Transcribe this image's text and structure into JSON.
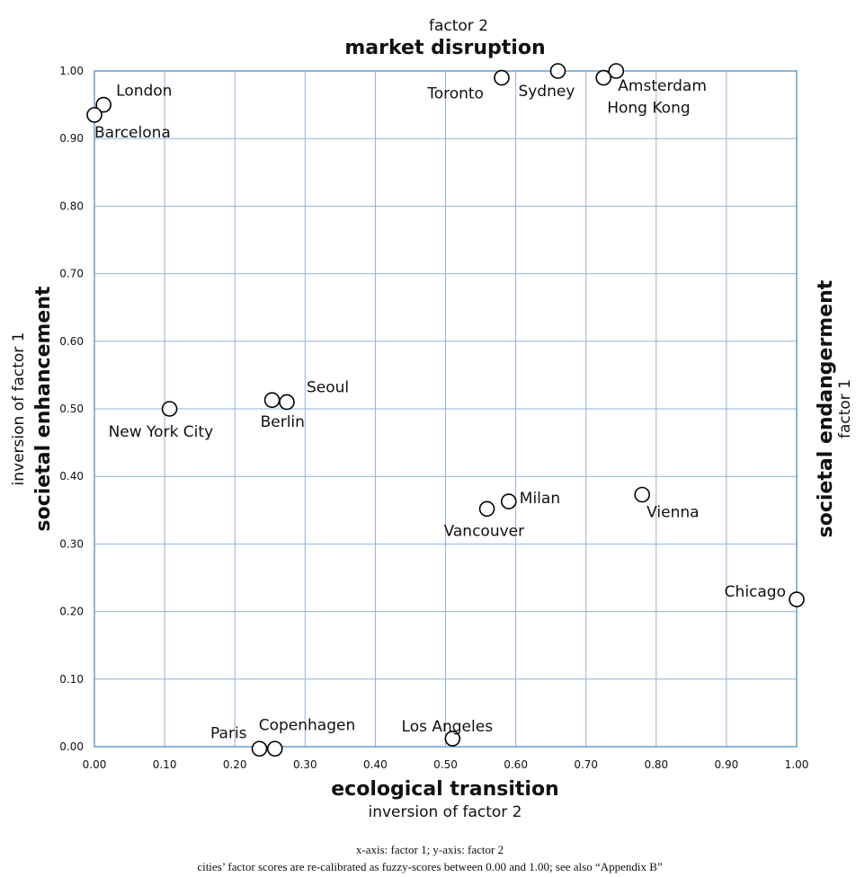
{
  "chart_data": {
    "type": "scatter",
    "xlim": [
      0,
      1
    ],
    "ylim": [
      0,
      1
    ],
    "grid": true,
    "x_ticks": [
      "0.00",
      "0.10",
      "0.20",
      "0.30",
      "0.40",
      "0.50",
      "0.60",
      "0.70",
      "0.80",
      "0.90",
      "1.00"
    ],
    "y_ticks": [
      "0.00",
      "0.10",
      "0.20",
      "0.30",
      "0.40",
      "0.50",
      "0.60",
      "0.70",
      "0.80",
      "0.90",
      "1.00"
    ],
    "top_label": {
      "line1": "factor 2",
      "line2": "market disruption"
    },
    "bottom_label": {
      "line1": "ecological transition",
      "line2": "inversion of factor 2"
    },
    "left_label": {
      "line1": "inversion of factor 1",
      "line2": "societal enhancement"
    },
    "right_label": {
      "line1": "societal endangerment",
      "line2": "factor 1"
    },
    "points": [
      {
        "name": "London",
        "x": 0.013,
        "y": 0.95
      },
      {
        "name": "Barcelona",
        "x": 0.0,
        "y": 0.935
      },
      {
        "name": "Toronto",
        "x": 0.58,
        "y": 0.99
      },
      {
        "name": "Sydney",
        "x": 0.66,
        "y": 1.0
      },
      {
        "name": "Amsterdam",
        "x": 0.743,
        "y": 1.0
      },
      {
        "name": "Hong Kong",
        "x": 0.725,
        "y": 0.99
      },
      {
        "name": "New York City",
        "x": 0.107,
        "y": 0.5
      },
      {
        "name": "Berlin",
        "x": 0.253,
        "y": 0.513
      },
      {
        "name": "Seoul",
        "x": 0.274,
        "y": 0.51
      },
      {
        "name": "Milan",
        "x": 0.59,
        "y": 0.363
      },
      {
        "name": "Vancouver",
        "x": 0.559,
        "y": 0.352
      },
      {
        "name": "Vienna",
        "x": 0.78,
        "y": 0.373
      },
      {
        "name": "Chicago",
        "x": 1.0,
        "y": 0.218
      },
      {
        "name": "Los Angeles",
        "x": 0.51,
        "y": 0.012
      },
      {
        "name": "Paris",
        "x": 0.235,
        "y": -0.003
      },
      {
        "name": "Copenhagen",
        "x": 0.257,
        "y": -0.003
      }
    ]
  },
  "footnote": {
    "line1": "x-axis: factor 1; y-axis: factor 2",
    "line2": "cities’ factor scores are re-calibrated as fuzzy-scores between 0.00 and 1.00; see also “Appendix B”"
  }
}
